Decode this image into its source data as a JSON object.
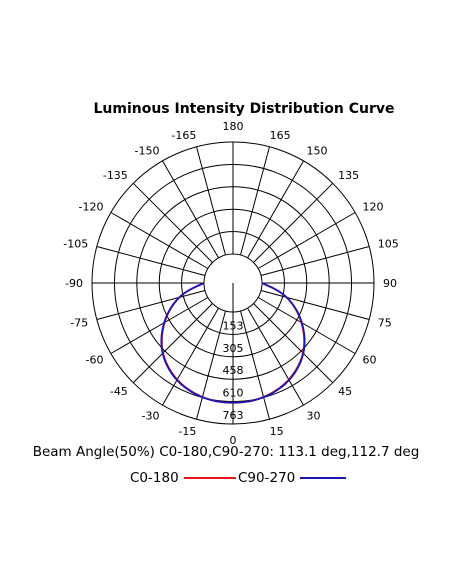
{
  "chart_data": {
    "type": "polar",
    "title": "Luminous Intensity Distribution Curve",
    "angle_labels": {
      "0": "0",
      "15": "15",
      "30": "30",
      "45": "45",
      "60": "60",
      "75": "75",
      "90": "90",
      "105": "105",
      "120": "120",
      "135": "135",
      "150": "150",
      "165": "165",
      "180": "180",
      "-15": "-15",
      "-30": "-30",
      "-45": "-45",
      "-60": "-60",
      "-75": "-75",
      "-90": "-90",
      "-105": "-105",
      "-120": "-120",
      "-135": "-135",
      "-150": "-150",
      "-165": "-165"
    },
    "radial_ticks": [
      153,
      305,
      458,
      610,
      763
    ],
    "radial_labels": [
      "153",
      "305",
      "458",
      "610",
      "763"
    ],
    "rmax": 763,
    "series": [
      {
        "name": "C0-180",
        "color": "#e8141b",
        "angles": [
          -90,
          -75,
          -60,
          -45,
          -30,
          -15,
          0,
          15,
          30,
          45,
          60,
          75,
          90
        ],
        "values": [
          0,
          180,
          340,
          476,
          562,
          606,
          618,
          606,
          562,
          476,
          340,
          180,
          0
        ]
      },
      {
        "name": "C90-270",
        "color": "#1a16b4",
        "angles": [
          -90,
          -75,
          -60,
          -45,
          -30,
          -15,
          0,
          15,
          30,
          45,
          60,
          75,
          90
        ],
        "values": [
          0,
          182,
          344,
          480,
          566,
          608,
          618,
          608,
          566,
          480,
          344,
          182,
          0
        ]
      }
    ],
    "beam_angle_text": "Beam Angle(50%) C0-180,C90-270: 113.1 deg,112.7 deg",
    "legend": [
      {
        "label": "C0-180",
        "color": "#e8141b"
      },
      {
        "label": "C90-270",
        "color": "#1a16b4"
      }
    ],
    "grid": true
  }
}
